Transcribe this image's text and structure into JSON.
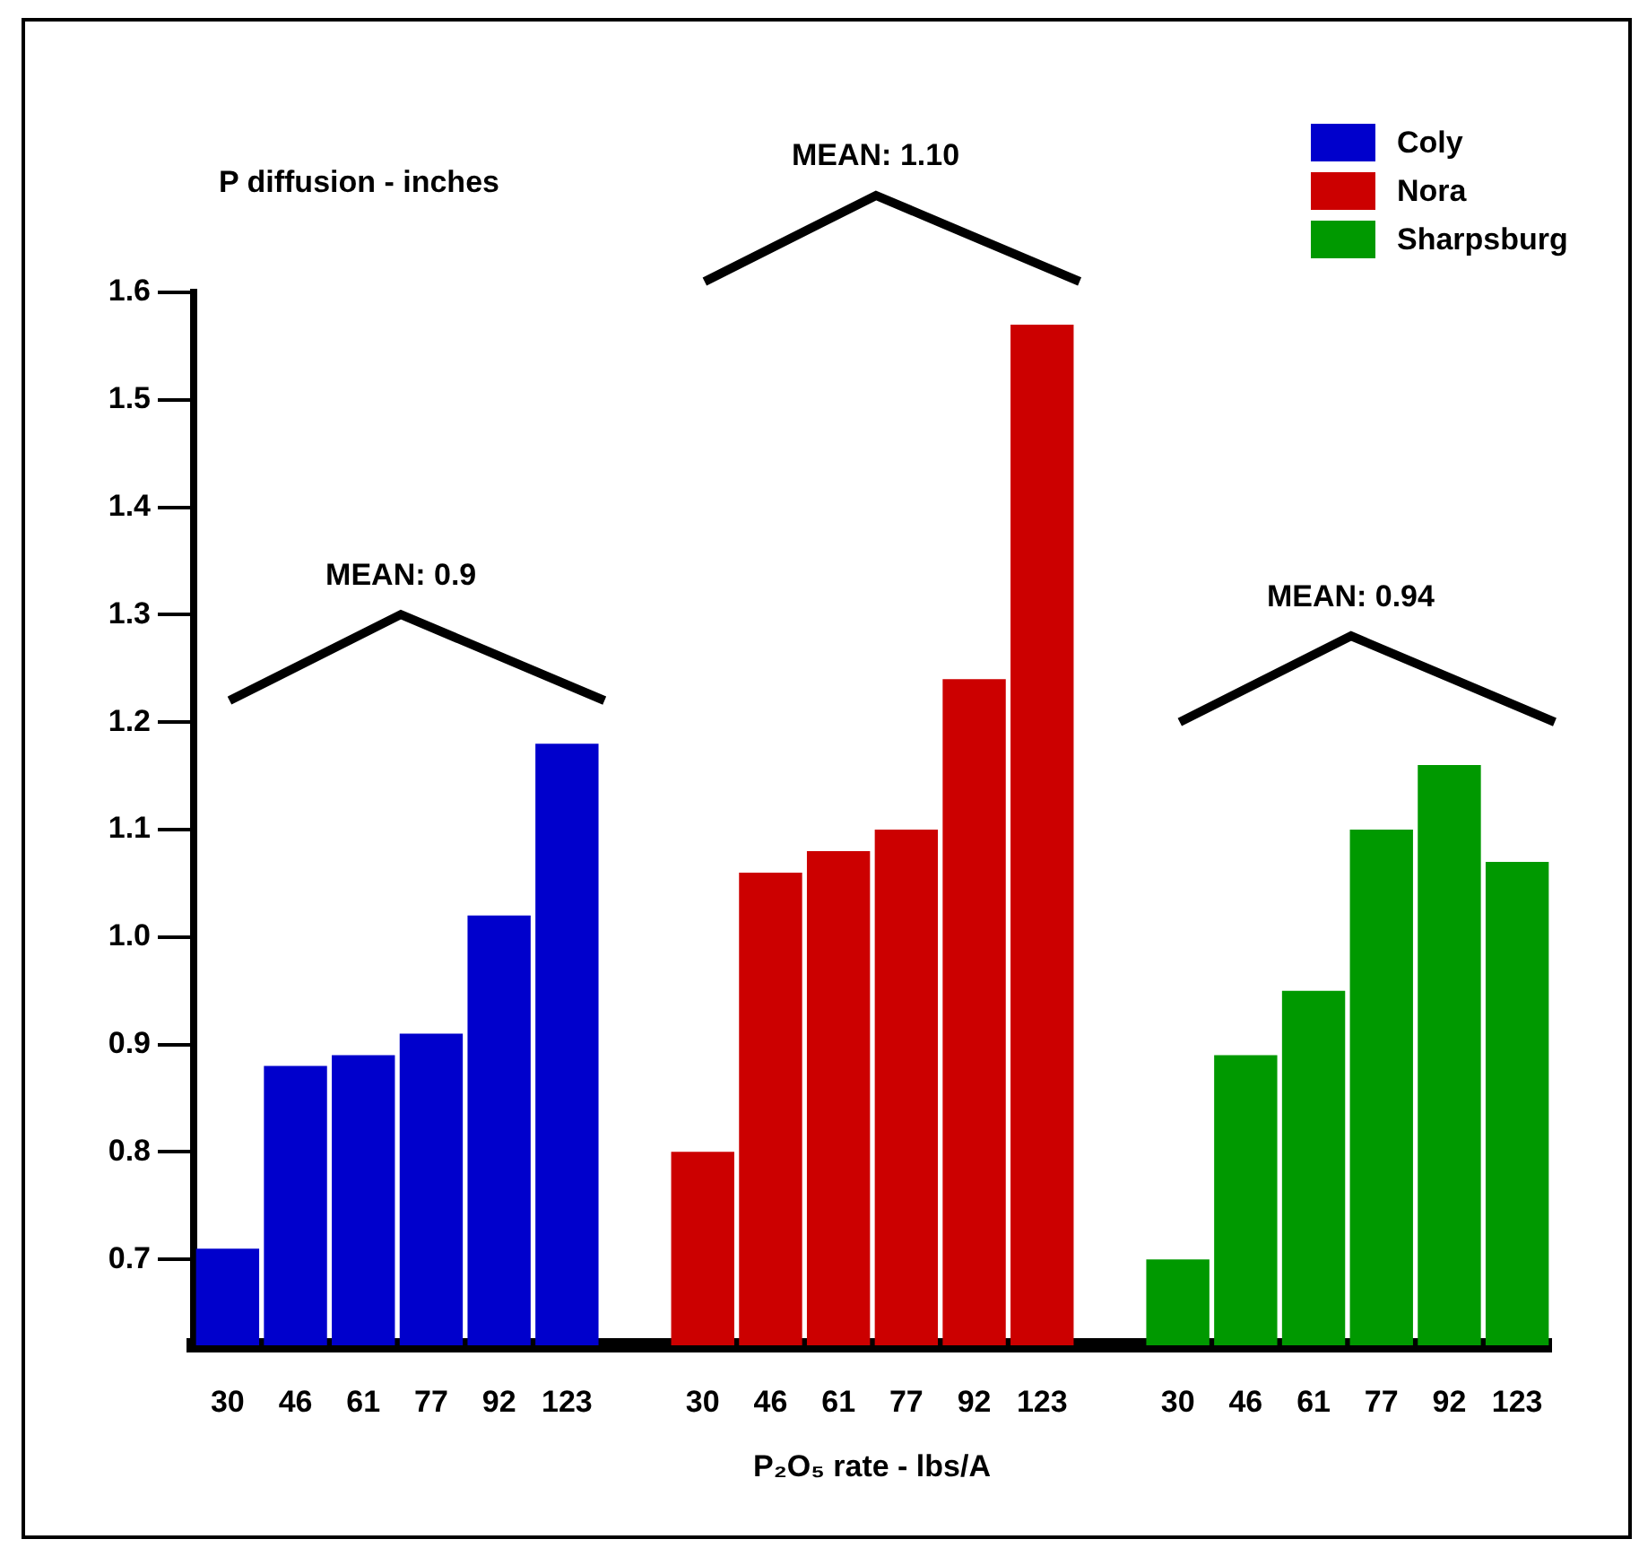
{
  "chart_data": {
    "type": "bar",
    "ylabel": "P diffusion - inches",
    "xlabel": "P₂O₅ rate - lbs/A",
    "categories": [
      "30",
      "46",
      "61",
      "77",
      "92",
      "123",
      null,
      "30",
      "46",
      "61",
      "77",
      "92",
      "123",
      null,
      "30",
      "46",
      "61",
      "77",
      "92",
      "123"
    ],
    "series": [
      {
        "name": "Coly",
        "color": "#0000cc",
        "values": [
          0.71,
          0.88,
          0.89,
          0.91,
          1.02,
          1.18,
          null,
          null,
          null,
          null,
          null,
          null,
          null,
          null,
          null,
          null,
          null,
          null,
          null,
          null
        ]
      },
      {
        "name": "Nora",
        "color": "#cc0000",
        "values": [
          null,
          null,
          null,
          null,
          null,
          null,
          null,
          0.8,
          1.06,
          1.08,
          1.1,
          1.24,
          1.57,
          null,
          null,
          null,
          null,
          null,
          null,
          null
        ]
      },
      {
        "name": "Sharpsburg",
        "color": "#009900",
        "values": [
          null,
          null,
          null,
          null,
          null,
          null,
          null,
          null,
          null,
          null,
          null,
          null,
          null,
          null,
          0.7,
          0.89,
          0.95,
          1.1,
          1.16,
          1.07
        ]
      }
    ],
    "annotations": [
      "MEAN: 0.9",
      "MEAN: 1.10",
      "MEAN: 0.94"
    ],
    "ylim": [
      0.62,
      1.6
    ],
    "yticks": [
      0.7,
      0.8,
      0.9,
      {
        "value": 1.0,
        "label": "1.0"
      },
      1.1,
      1.2,
      1.3,
      1.4,
      1.5,
      1.6
    ],
    "grid": false,
    "legend": "top right"
  }
}
